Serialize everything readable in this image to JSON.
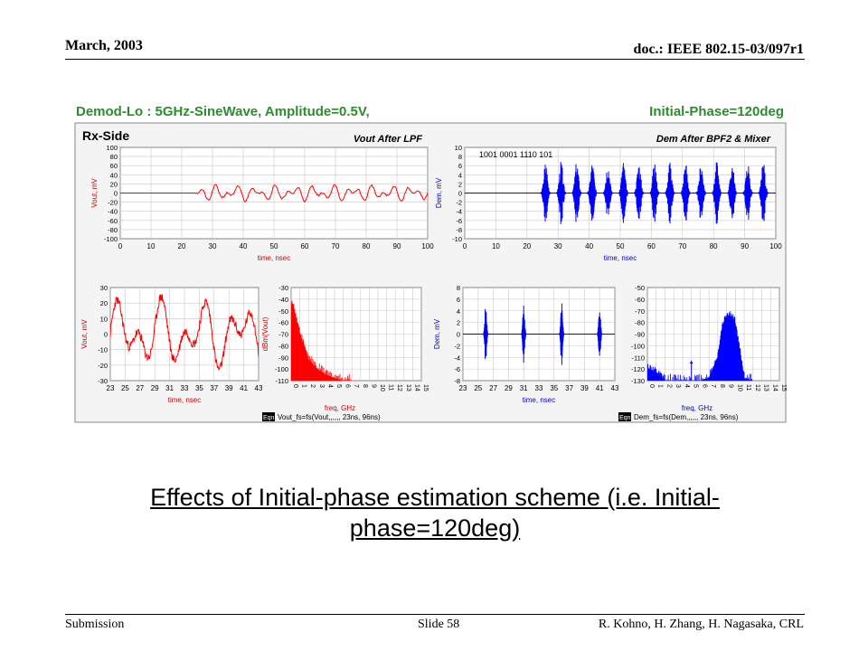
{
  "header": {
    "date": "March, 2003",
    "doc": "doc.: IEEE 802.15-03/097r1"
  },
  "footer": {
    "submission": "Submission",
    "slide": "Slide 58",
    "authors": "R. Kohno, H. Zhang, H. Nagasaka, CRL"
  },
  "figure": {
    "title_left": "Demod-Lo : 5GHz-SineWave, Amplitude=0.5V,",
    "title_right": "Initial-Phase=120deg",
    "side_label": "Rx-Side",
    "bits_label": "1001 0001 1110 101",
    "eqn_label": "Eqn",
    "colors": {
      "title": "#2e8b2e",
      "red": "#ff0000",
      "blue": "#0000ff",
      "axis_label": "#cc0000",
      "axis_label_blue": "#0000cc",
      "grid": "#c8c8c8"
    }
  },
  "chart_data": [
    {
      "type": "line",
      "title": "Vout After LPF",
      "xlabel": "time, nsec",
      "ylabel": "Vout, mV",
      "xlim": [
        0,
        100
      ],
      "ylim": [
        -100,
        100
      ],
      "x_ticks": [
        "0",
        "10",
        "20",
        "30",
        "40",
        "50",
        "60",
        "70",
        "80",
        "90",
        "100"
      ],
      "y_ticks": [
        "100",
        "80",
        "60",
        "40",
        "20",
        "0",
        "-20",
        "-40",
        "-60",
        "-80",
        "-100"
      ],
      "series": [
        {
          "color": "#ff0000",
          "shape": "flat until ~25 ns, then small oscillations about ±20 mV"
        }
      ]
    },
    {
      "type": "line",
      "title": "Dem After BPF2 & Mixer",
      "xlabel": "time, nsec",
      "ylabel": "Dem, mV",
      "xlim": [
        0,
        100
      ],
      "ylim": [
        -10,
        10
      ],
      "x_ticks": [
        "0",
        "10",
        "20",
        "30",
        "40",
        "50",
        "60",
        "70",
        "80",
        "90",
        "100"
      ],
      "y_ticks": [
        "10",
        "8",
        "6",
        "4",
        "2",
        "0",
        "-2",
        "-4",
        "-6",
        "-8",
        "-10"
      ],
      "bursts_ns": [
        26,
        31,
        36,
        41,
        46,
        51,
        56,
        61,
        66,
        71,
        76,
        81,
        86,
        91,
        96
      ],
      "series": [
        {
          "color": "#0000ff"
        }
      ]
    },
    {
      "type": "line",
      "xlabel": "time, nsec",
      "ylabel": "Vout, mV",
      "xlim": [
        23,
        43
      ],
      "ylim": [
        -30,
        30
      ],
      "x_ticks": [
        "23",
        "25",
        "27",
        "29",
        "31",
        "33",
        "35",
        "37",
        "39",
        "41",
        "43"
      ],
      "y_ticks": [
        "30",
        "20",
        "10",
        "0",
        "-10",
        "-20",
        "-30"
      ],
      "series": [
        {
          "color": "#ff0000"
        }
      ]
    },
    {
      "type": "area",
      "xlabel": "freq, GHz",
      "ylabel": "dBm(Vout)",
      "xlim": [
        0,
        15
      ],
      "ylim": [
        -110,
        -30
      ],
      "x_ticks": [
        "0",
        "1",
        "2",
        "3",
        "4",
        "5",
        "6",
        "7",
        "8",
        "9",
        "10",
        "11",
        "12",
        "13",
        "14",
        "15"
      ],
      "y_ticks": [
        "-30",
        "-40",
        "-50",
        "-60",
        "-70",
        "-80",
        "-90",
        "-100",
        "-110"
      ],
      "equation": "Vout_fs=fs(Vout,,,,,, 23ns, 96ns)",
      "series": [
        {
          "color": "#ff0000",
          "x": [
            0,
            0.3,
            0.6,
            1,
            1.5,
            2,
            3,
            4,
            5,
            6,
            7
          ],
          "y": [
            -45,
            -50,
            -58,
            -70,
            -82,
            -92,
            -100,
            -105,
            -108,
            -110,
            -110
          ]
        }
      ]
    },
    {
      "type": "line",
      "xlabel": "time, nsec",
      "ylabel": "Dem, mV",
      "xlim": [
        23,
        43
      ],
      "ylim": [
        -8,
        8
      ],
      "x_ticks": [
        "23",
        "25",
        "27",
        "29",
        "31",
        "33",
        "35",
        "37",
        "39",
        "41",
        "43"
      ],
      "y_ticks": [
        "8",
        "6",
        "4",
        "2",
        "0",
        "-2",
        "-4",
        "-6",
        "-8"
      ],
      "bursts_ns": [
        26,
        31,
        36,
        41
      ],
      "series": [
        {
          "color": "#0000ff"
        }
      ]
    },
    {
      "type": "area",
      "xlabel": "freq, GHz",
      "ylabel": "",
      "xlim": [
        0,
        15
      ],
      "ylim": [
        -130,
        -50
      ],
      "x_ticks": [
        "0",
        "1",
        "2",
        "3",
        "4",
        "5",
        "6",
        "7",
        "8",
        "9",
        "10",
        "11",
        "12",
        "13",
        "14",
        "15"
      ],
      "y_ticks": [
        "-50",
        "-60",
        "-70",
        "-80",
        "-90",
        "-100",
        "-110",
        "-120",
        "-130"
      ],
      "equation": "Dem_fs=fs(Dem,,,,,, 23ns, 96ns)",
      "series": [
        {
          "color": "#0000ff",
          "x": [
            0,
            0.5,
            1,
            1.5,
            2,
            3,
            4,
            5,
            6,
            7,
            8,
            8.5,
            9,
            9.5,
            10,
            10.5,
            11,
            12
          ],
          "y": [
            -120,
            -122,
            -125,
            -128,
            -130,
            -130,
            -130,
            -130,
            -130,
            -128,
            -110,
            -85,
            -75,
            -75,
            -82,
            -105,
            -128,
            -130
          ]
        }
      ]
    }
  ],
  "caption": {
    "line1": "Effects of Initial-phase estimation scheme (i.e. Initial-",
    "line2": "phase=120deg)"
  }
}
